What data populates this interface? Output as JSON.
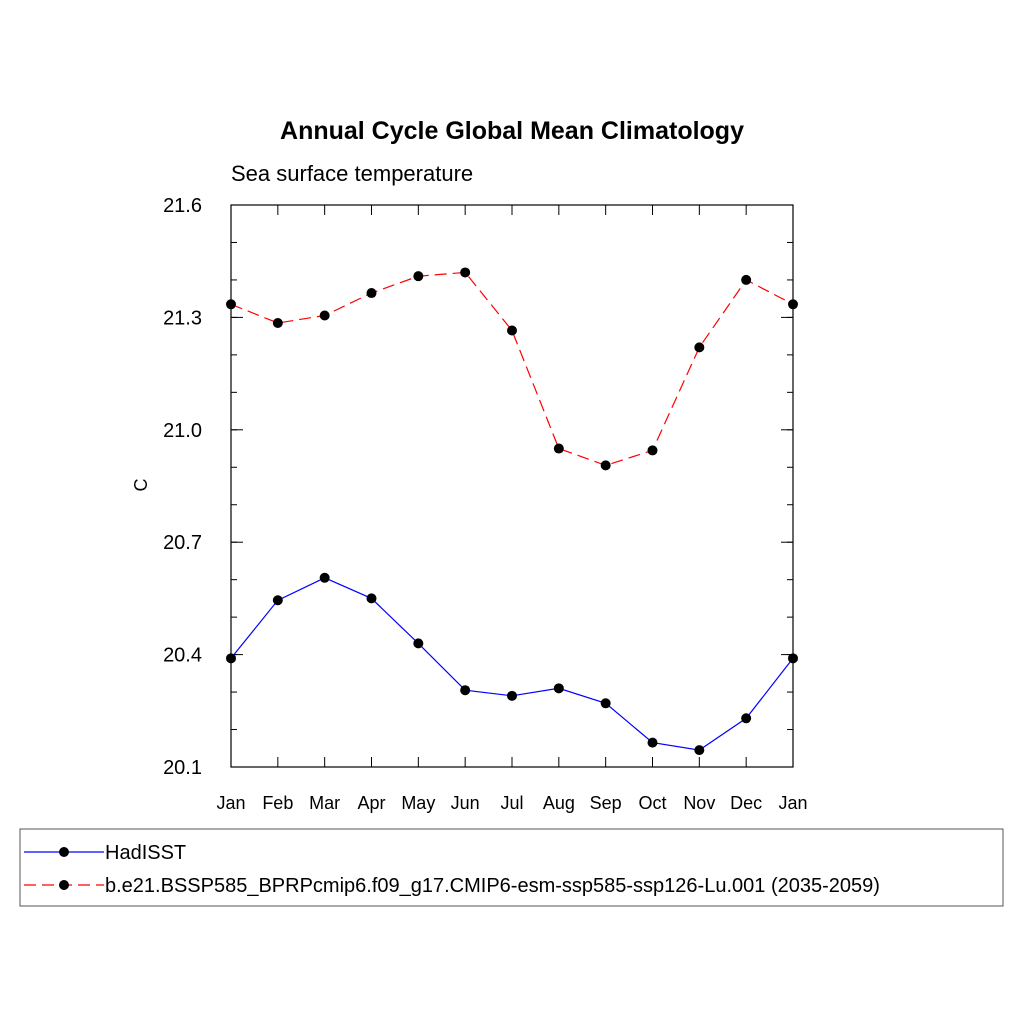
{
  "chart_data": {
    "type": "line",
    "title": "Annual Cycle Global Mean Climatology",
    "subtitle": "Sea surface temperature",
    "xlabel": "",
    "ylabel": "C",
    "categories": [
      "Jan",
      "Feb",
      "Mar",
      "Apr",
      "May",
      "Jun",
      "Jul",
      "Aug",
      "Sep",
      "Oct",
      "Nov",
      "Dec",
      "Jan"
    ],
    "ylim": [
      20.1,
      21.6
    ],
    "yticks": [
      20.1,
      20.4,
      20.7,
      21.0,
      21.3,
      21.6
    ],
    "ytick_labels": [
      "20.1",
      "20.4",
      "20.7",
      "21.0",
      "21.3",
      "21.6"
    ],
    "y_minor_step": 0.1,
    "grid": false,
    "legend_position": "bottom",
    "series": [
      {
        "name": "HadISST",
        "color": "#0000ff",
        "line_style": "solid",
        "marker": "filled-circle",
        "values": [
          20.39,
          20.545,
          20.605,
          20.55,
          20.43,
          20.305,
          20.29,
          20.31,
          20.27,
          20.165,
          20.145,
          20.23,
          20.39
        ]
      },
      {
        "name": "b.e21.BSSP585_BPRPcmip6.f09_g17.CMIP6-esm-ssp585-ssp126-Lu.001 (2035-2059)",
        "color": "#ff0000",
        "line_style": "dashed",
        "marker": "filled-circle",
        "values": [
          21.335,
          21.285,
          21.305,
          21.365,
          21.41,
          21.42,
          21.265,
          20.95,
          20.905,
          20.945,
          21.22,
          21.4,
          21.335
        ]
      }
    ]
  }
}
